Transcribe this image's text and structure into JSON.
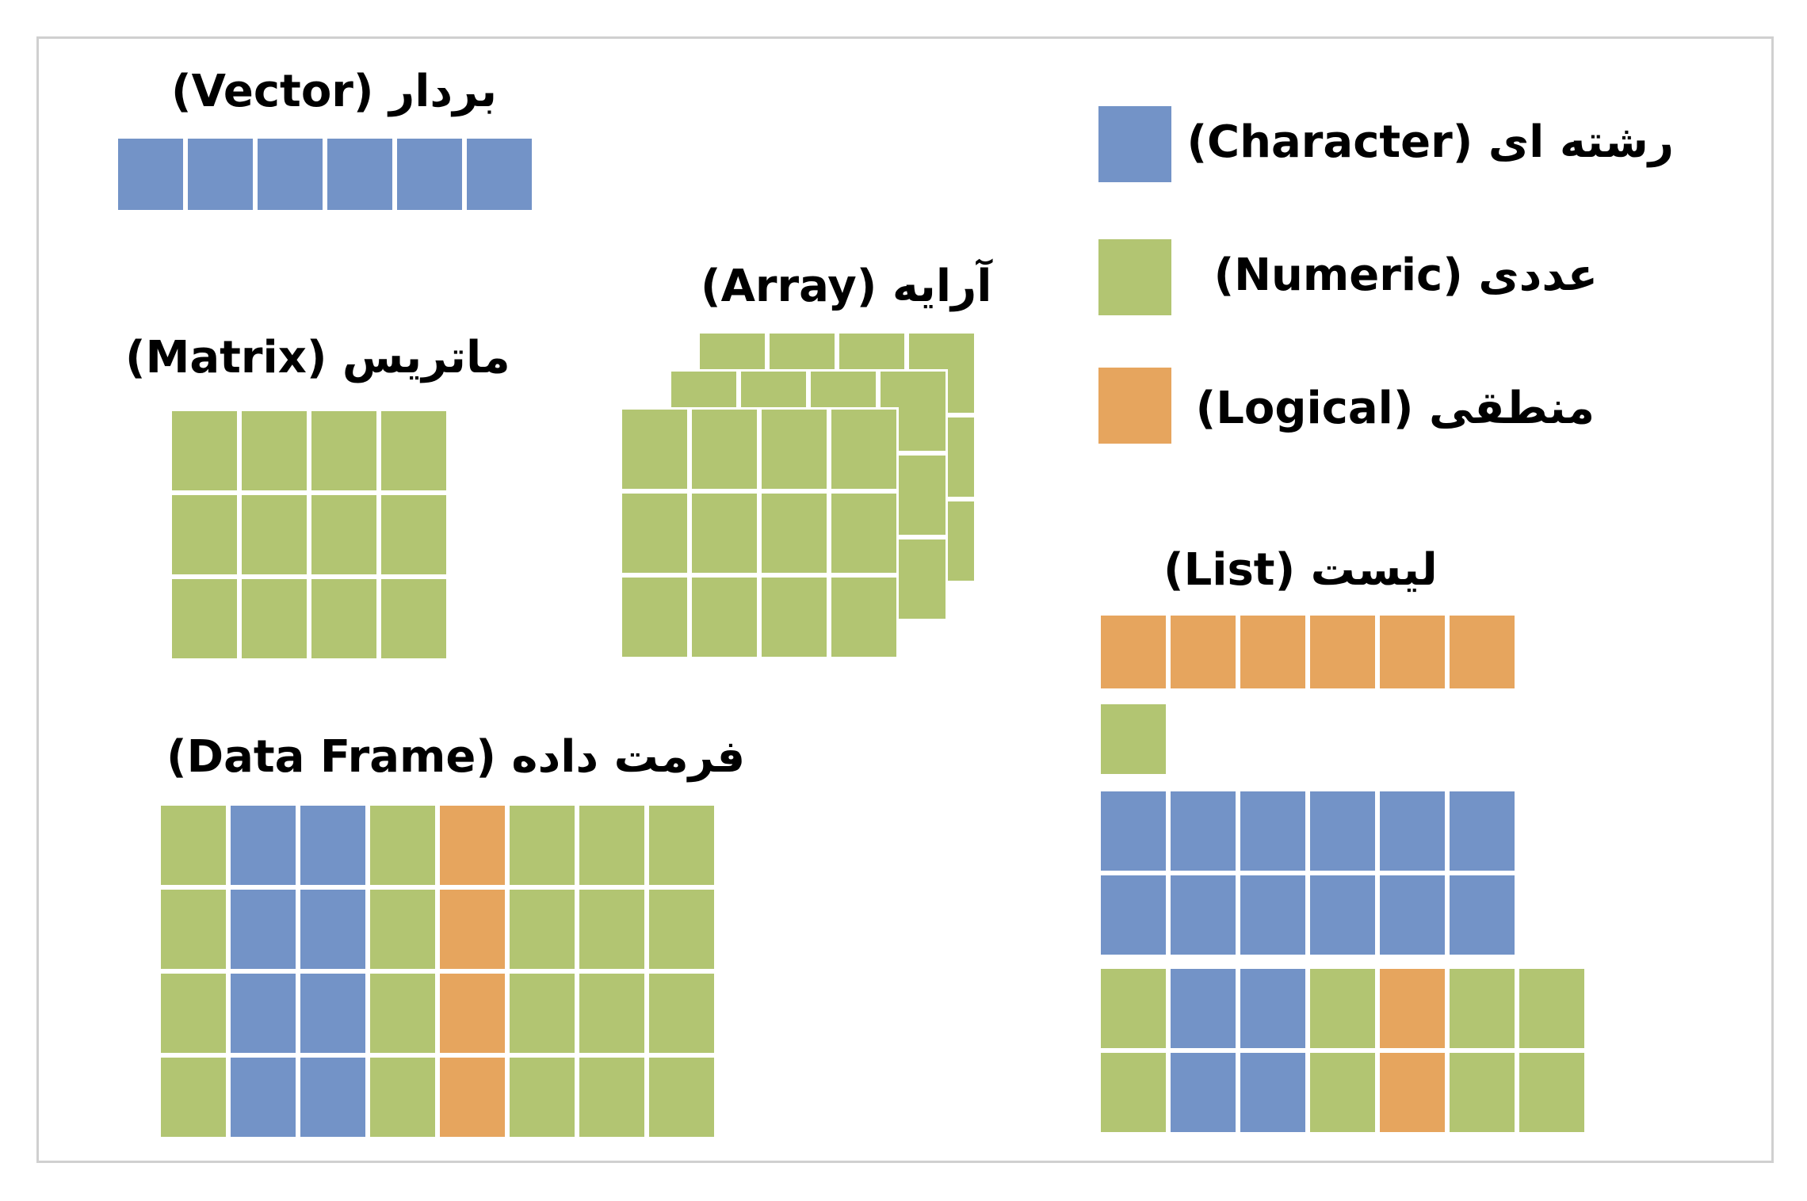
{
  "colors": {
    "character": "#7393c7",
    "numeric": "#b2c572",
    "logical": "#e6a55e",
    "border": "#d0d0d0"
  },
  "legend": {
    "character": "رشته ای (Character)",
    "numeric": "عددی (Numeric)",
    "logical": "منطقی (Logical)"
  },
  "titles": {
    "vector": "بردار (Vector)",
    "matrix": "ماتریس (Matrix)",
    "array": "آرایه (Array)",
    "list": "لیست (List)",
    "data_frame": "فرمت داده (Data Frame)"
  },
  "structures": {
    "vector": {
      "type": "character",
      "length": 6
    },
    "matrix": {
      "type": "numeric",
      "rows": 3,
      "cols": 4
    },
    "array": {
      "type": "numeric",
      "rows": 3,
      "cols": 4,
      "layers": 3
    },
    "data_frame": {
      "rows": 4,
      "column_types": [
        "numeric",
        "character",
        "character",
        "numeric",
        "logical",
        "numeric",
        "numeric",
        "numeric"
      ]
    },
    "list": {
      "elements": [
        {
          "kind": "vector",
          "type": "logical",
          "length": 6
        },
        {
          "kind": "vector",
          "type": "numeric",
          "length": 1
        },
        {
          "kind": "matrix",
          "type": "character",
          "rows": 2,
          "cols": 6
        },
        {
          "kind": "data_frame",
          "rows": 2,
          "column_types": [
            "numeric",
            "character",
            "character",
            "numeric",
            "logical",
            "numeric",
            "numeric"
          ]
        }
      ]
    }
  }
}
